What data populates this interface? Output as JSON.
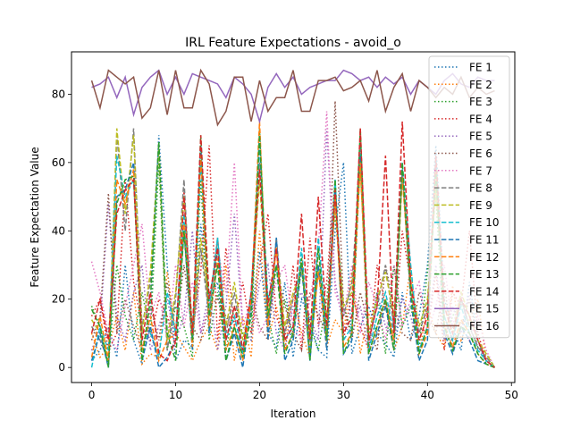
{
  "chart_data": {
    "type": "line",
    "title": "IRL Feature Expectations - avoid_o",
    "xlabel": "Iteration",
    "ylabel": "Feature Expectation Value",
    "xlim": [
      -2.4,
      50.4
    ],
    "ylim": [
      -4.4,
      92.4
    ],
    "xticks": [
      0,
      10,
      20,
      30,
      40,
      50
    ],
    "yticks": [
      0,
      20,
      40,
      60,
      80
    ],
    "grid": false,
    "legend_position": "upper-right",
    "x": [
      0,
      1,
      2,
      3,
      4,
      5,
      6,
      7,
      8,
      9,
      10,
      11,
      12,
      13,
      14,
      15,
      16,
      17,
      18,
      19,
      20,
      21,
      22,
      23,
      24,
      25,
      26,
      27,
      28,
      29,
      30,
      31,
      32,
      33,
      34,
      35,
      36,
      37,
      38,
      39,
      40,
      41,
      42,
      43,
      44,
      45,
      46,
      47,
      48
    ],
    "series": [
      {
        "name": "FE 1",
        "color": "#1f77b4",
        "dash": "dotted",
        "values": [
          2,
          5,
          12,
          3,
          30,
          8,
          1,
          15,
          68,
          30,
          2,
          8,
          6,
          42,
          20,
          25,
          2,
          12,
          4,
          15,
          34,
          10,
          6,
          25,
          3,
          20,
          14,
          5,
          3,
          40,
          60,
          4,
          12,
          18,
          10,
          7,
          3,
          22,
          8,
          15,
          30,
          65,
          20,
          12,
          5,
          25,
          8,
          1,
          0
        ]
      },
      {
        "name": "FE 2",
        "color": "#ff7f0e",
        "dash": "dotted",
        "values": [
          10,
          3,
          6,
          15,
          5,
          22,
          1,
          4,
          3,
          28,
          10,
          6,
          2,
          8,
          12,
          5,
          30,
          2,
          15,
          3,
          40,
          8,
          18,
          5,
          22,
          10,
          3,
          35,
          6,
          14,
          10,
          28,
          4,
          16,
          8,
          20,
          5,
          12,
          30,
          4,
          18,
          10,
          6,
          24,
          8,
          14,
          20,
          2,
          0
        ]
      },
      {
        "name": "FE 3",
        "color": "#2ca02c",
        "dash": "dotted",
        "values": [
          18,
          12,
          1,
          30,
          15,
          8,
          22,
          10,
          60,
          5,
          18,
          12,
          3,
          55,
          8,
          22,
          5,
          18,
          10,
          8,
          70,
          15,
          4,
          20,
          8,
          30,
          12,
          5,
          20,
          45,
          18,
          10,
          68,
          8,
          22,
          4,
          30,
          12,
          18,
          6,
          28,
          50,
          8,
          15,
          20,
          12,
          6,
          4,
          0
        ]
      },
      {
        "name": "FE 4",
        "color": "#d62728",
        "dash": "dotted",
        "values": [
          15,
          20,
          5,
          10,
          55,
          25,
          12,
          8,
          20,
          15,
          6,
          52,
          10,
          28,
          65,
          8,
          35,
          12,
          25,
          10,
          30,
          45,
          15,
          8,
          30,
          5,
          38,
          12,
          25,
          55,
          8,
          22,
          12,
          5,
          30,
          18,
          8,
          40,
          25,
          12,
          10,
          28,
          5,
          22,
          18,
          40,
          10,
          2,
          0
        ]
      },
      {
        "name": "FE 5",
        "color": "#9467bd",
        "dash": "dotted",
        "values": [
          5,
          12,
          48,
          15,
          8,
          22,
          30,
          5,
          12,
          20,
          8,
          15,
          40,
          10,
          22,
          5,
          18,
          45,
          12,
          8,
          25,
          30,
          10,
          5,
          18,
          22,
          15,
          8,
          70,
          25,
          12,
          10,
          18,
          5,
          22,
          12,
          8,
          20,
          15,
          5,
          12,
          30,
          8,
          18,
          10,
          22,
          5,
          3,
          0
        ]
      },
      {
        "name": "FE 6",
        "color": "#8c564b",
        "dash": "dotted",
        "values": [
          8,
          15,
          51,
          10,
          20,
          12,
          5,
          18,
          8,
          25,
          10,
          30,
          12,
          8,
          18,
          20,
          15,
          10,
          5,
          22,
          12,
          8,
          30,
          18,
          10,
          5,
          22,
          15,
          10,
          78,
          18,
          8,
          22,
          12,
          5,
          30,
          18,
          10,
          8,
          22,
          15,
          10,
          25,
          5,
          12,
          20,
          8,
          2,
          0
        ]
      },
      {
        "name": "FE 7",
        "color": "#e377c2",
        "dash": "dotted",
        "values": [
          31,
          22,
          10,
          5,
          18,
          30,
          42,
          15,
          22,
          8,
          30,
          12,
          25,
          10,
          18,
          35,
          22,
          60,
          12,
          20,
          10,
          15,
          25,
          30,
          12,
          8,
          20,
          35,
          75,
          22,
          15,
          30,
          10,
          25,
          18,
          8,
          30,
          12,
          20,
          25,
          10,
          18,
          30,
          12,
          22,
          8,
          15,
          5,
          0
        ]
      },
      {
        "name": "FE 8",
        "color": "#7f7f7f",
        "dash": "dashed",
        "values": [
          12,
          8,
          2,
          68,
          40,
          70,
          12,
          25,
          66,
          5,
          20,
          55,
          8,
          35,
          15,
          38,
          10,
          22,
          5,
          18,
          60,
          12,
          38,
          10,
          20,
          30,
          8,
          28,
          12,
          50,
          15,
          25,
          60,
          8,
          18,
          30,
          12,
          58,
          22,
          10,
          18,
          55,
          15,
          8,
          20,
          12,
          6,
          3,
          0
        ]
      },
      {
        "name": "FE 9",
        "color": "#bcbd22",
        "dash": "dashed",
        "values": [
          14,
          10,
          3,
          70,
          45,
          68,
          10,
          28,
          64,
          8,
          22,
          50,
          10,
          38,
          18,
          35,
          12,
          25,
          8,
          20,
          55,
          15,
          35,
          12,
          22,
          28,
          10,
          30,
          15,
          48,
          18,
          22,
          58,
          10,
          20,
          28,
          15,
          55,
          25,
          12,
          20,
          52,
          18,
          10,
          22,
          15,
          8,
          4,
          0
        ]
      },
      {
        "name": "FE 10",
        "color": "#17becf",
        "dash": "dashed",
        "values": [
          0,
          12,
          5,
          62,
          50,
          55,
          8,
          10,
          3,
          22,
          10,
          45,
          8,
          60,
          18,
          38,
          8,
          15,
          4,
          22,
          65,
          20,
          30,
          8,
          12,
          35,
          5,
          38,
          10,
          55,
          8,
          12,
          65,
          5,
          15,
          22,
          10,
          60,
          30,
          5,
          12,
          62,
          15,
          8,
          18,
          10,
          5,
          2,
          0
        ]
      },
      {
        "name": "FE 11",
        "color": "#1f77b4",
        "dash": "dashed",
        "values": [
          2,
          10,
          0,
          50,
          52,
          60,
          2,
          12,
          0,
          3,
          8,
          40,
          5,
          65,
          10,
          35,
          2,
          10,
          0,
          18,
          68,
          8,
          38,
          2,
          8,
          30,
          2,
          30,
          5,
          52,
          4,
          8,
          62,
          2,
          10,
          18,
          5,
          58,
          20,
          2,
          8,
          60,
          10,
          4,
          12,
          8,
          2,
          1,
          0
        ]
      },
      {
        "name": "FE 12",
        "color": "#ff7f0e",
        "dash": "dashed",
        "values": [
          3,
          15,
          2,
          55,
          48,
          58,
          5,
          15,
          2,
          8,
          10,
          42,
          6,
          62,
          12,
          32,
          5,
          12,
          2,
          20,
          72,
          12,
          35,
          5,
          10,
          32,
          4,
          28,
          8,
          50,
          6,
          10,
          60,
          4,
          12,
          20,
          8,
          56,
          22,
          4,
          10,
          58,
          12,
          6,
          14,
          10,
          4,
          1,
          0
        ]
      },
      {
        "name": "FE 13",
        "color": "#2ca02c",
        "dash": "dashed",
        "values": [
          17,
          12,
          0,
          48,
          55,
          56,
          2,
          20,
          66,
          10,
          2,
          40,
          8,
          68,
          15,
          30,
          2,
          12,
          3,
          15,
          68,
          15,
          30,
          4,
          10,
          32,
          2,
          35,
          8,
          55,
          4,
          10,
          70,
          4,
          12,
          20,
          5,
          60,
          22,
          4,
          12,
          58,
          12,
          5,
          12,
          10,
          4,
          1,
          0
        ]
      },
      {
        "name": "FE 14",
        "color": "#d62728",
        "dash": "dashed",
        "values": [
          10,
          20,
          8,
          45,
          52,
          55,
          8,
          22,
          4,
          2,
          8,
          50,
          10,
          68,
          20,
          35,
          8,
          18,
          5,
          22,
          58,
          18,
          35,
          8,
          12,
          45,
          8,
          50,
          12,
          52,
          10,
          15,
          70,
          8,
          18,
          62,
          10,
          72,
          25,
          8,
          15,
          62,
          18,
          10,
          20,
          15,
          8,
          2,
          0
        ]
      },
      {
        "name": "FE 15",
        "color": "#9467bd",
        "dash": "solid",
        "values": [
          82,
          83,
          85,
          79,
          85,
          74,
          82,
          85,
          87,
          80,
          85,
          80,
          86,
          85,
          84,
          83,
          79,
          85,
          83,
          80,
          72,
          82,
          86,
          82,
          85,
          80,
          82,
          83,
          84,
          84,
          87,
          86,
          84,
          85,
          82,
          85,
          83,
          85,
          80,
          84,
          82,
          80,
          84,
          86,
          83,
          82,
          85,
          84,
          84
        ]
      },
      {
        "name": "FE 16",
        "color": "#8c564b",
        "dash": "solid",
        "values": [
          84,
          76,
          87,
          85,
          83,
          85,
          73,
          76,
          87,
          74,
          87,
          76,
          76,
          87,
          83,
          71,
          75,
          85,
          85,
          72,
          84,
          75,
          79,
          79,
          87,
          75,
          75,
          84,
          84,
          85,
          81,
          82,
          84,
          78,
          87,
          75,
          82,
          86,
          75,
          84,
          82,
          79,
          82,
          80,
          85,
          79,
          82,
          80,
          81
        ]
      }
    ]
  }
}
